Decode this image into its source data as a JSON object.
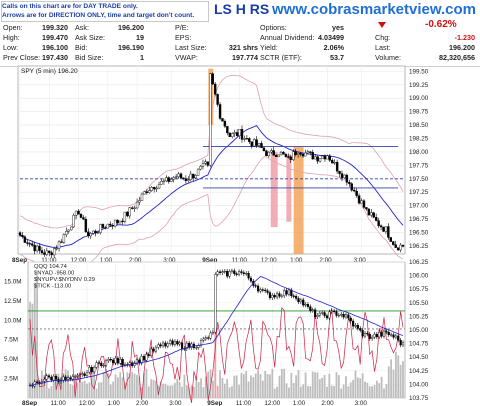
{
  "note": {
    "line1": "Calls on this chart are for DAY TRADE only.",
    "line2": "Arrows are for DIRECTION ONLY, time and target don't count."
  },
  "brand": {
    "logo": "LS H RS",
    "url": "www.cobrasmarketview.com"
  },
  "quote": {
    "open_label": "Open:",
    "open": "199.320",
    "high_label": "High:",
    "high": "199.470",
    "low_label": "Low:",
    "low": "196.100",
    "prev_label": "Prev Close:",
    "prev": "197.430",
    "ask_label": "Ask:",
    "ask": "196.200",
    "asksize_label": "Ask Size:",
    "asksize": "19",
    "bid_label": "Bid:",
    "bid": "196.190",
    "bidsize_label": "Bid Size:",
    "bidsize": "1",
    "pe_label": "P/E:",
    "pe": "",
    "eps_label": "EPS:",
    "eps": "",
    "lastsize_label": "Last Size:",
    "lastsize": "321 shrs",
    "vwap_label": "VWAP:",
    "vwap": "197.774",
    "options_label": "Options:",
    "options": "yes",
    "div_label": "Annual Dividend:",
    "div": "4.03499",
    "yield_label": "Yield:",
    "yield": "2.06%",
    "sctr_label": "SCTR (ETF):",
    "sctr": "53.7",
    "pct": "-0.62%",
    "chg_label": "Chg:",
    "chg": "-1.230",
    "last_label": "Last:",
    "last": "196.200",
    "vol_label": "Volume:",
    "vol": "82,320,656"
  },
  "colors": {
    "price_candles": "#000000",
    "ma_blue": "#2222cc",
    "bollinger": "#e0a0b0",
    "orange_volume": "#f5a55a",
    "pink_volume": "#f0a0a8",
    "magenta_line": "#cc2244",
    "green_line": "#229922",
    "hline_blue": "#3344aa"
  },
  "chart_data": [
    {
      "type": "line",
      "title": "SPY (5 min) 196.20",
      "description_ohlc": "5-minute SPY candles, two sessions",
      "x_ticks": [
        "8Sep",
        "11:00",
        "12:00",
        "1:00",
        "2:00",
        "3:00",
        "9Sep",
        "11:00",
        "12:00",
        "1:00",
        "2:00",
        "3:00"
      ],
      "ylim": [
        196.1,
        199.6
      ],
      "y_ticks": [
        196.25,
        196.5,
        196.75,
        197.0,
        197.25,
        197.5,
        197.75,
        198.0,
        198.25,
        198.5,
        198.75,
        199.0,
        199.25,
        199.5
      ],
      "series": [
        {
          "x": [
            0,
            4,
            8,
            12,
            16,
            20,
            24,
            28,
            32,
            36,
            40,
            44,
            48,
            52,
            56,
            60,
            64,
            68,
            72,
            76,
            78,
            82,
            86,
            90,
            94,
            98,
            102,
            106,
            110,
            114,
            118,
            122,
            126,
            130,
            134,
            138,
            142,
            146,
            150,
            154
          ],
          "values": [
            196.45,
            196.3,
            196.15,
            196.1,
            196.3,
            196.6,
            196.9,
            196.45,
            196.55,
            196.65,
            196.7,
            196.85,
            197.05,
            197.3,
            197.4,
            197.45,
            197.55,
            197.5,
            197.6,
            197.75,
            199.4,
            198.7,
            198.3,
            198.35,
            198.2,
            198.1,
            197.95,
            198.0,
            197.85,
            198.05,
            197.95,
            197.9,
            197.95,
            197.7,
            197.5,
            197.2,
            196.9,
            196.7,
            196.55,
            196.25
          ]
        }
      ],
      "annotations": [
        "Horizontal resistance at 198.10",
        "Horizontal line at 197.50"
      ]
    },
    {
      "type": "line",
      "series": [
        {
          "name": "QQQ 104.74",
          "values": []
        },
        {
          "name": "$NYAD -958.00",
          "values": []
        },
        {
          "name": "$NYUPV:$NYDNV 0.29",
          "values": []
        },
        {
          "name": "$TICK -113.00",
          "values": []
        }
      ],
      "right_ylim": [
        103.75,
        106.25
      ],
      "right_ticks": [
        103.75,
        104.0,
        104.25,
        104.5,
        104.75,
        105.0,
        105.25,
        105.5,
        105.75,
        106.0,
        106.25
      ],
      "left_ticks": [
        "2.5M",
        "5.0M",
        "7.5M",
        "10.0M",
        "12.5M",
        "15.0M"
      ],
      "x_ticks": [
        "8Sep",
        "11:00",
        "12:00",
        "1:00",
        "2:00",
        "3:00",
        "9Sep",
        "11:00",
        "12:00",
        "1:00",
        "2:00",
        "3:00"
      ]
    }
  ]
}
